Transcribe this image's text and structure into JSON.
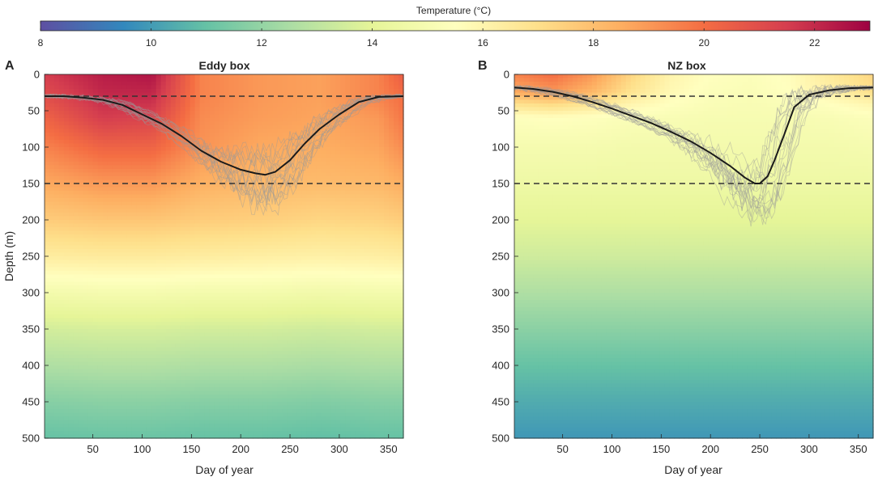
{
  "colorbar": {
    "label": "Temperature (°C)",
    "min": 8,
    "max": 23,
    "ticks": [
      8,
      10,
      12,
      14,
      16,
      18,
      20,
      22
    ],
    "colormap": [
      "#5e4fa2",
      "#3288bd",
      "#66c2a5",
      "#abdda4",
      "#e6f598",
      "#ffffbf",
      "#fee08b",
      "#fdae61",
      "#f46d43",
      "#d53e4f",
      "#9e0142"
    ]
  },
  "chart_data": [
    {
      "type": "heatmap",
      "panel_label": "A",
      "title": "Eddy box",
      "xlabel": "Day of year",
      "ylabel": "Depth (m)",
      "xlim": [
        1,
        365
      ],
      "ylim": [
        0,
        500
      ],
      "xticks": [
        50,
        100,
        150,
        200,
        250,
        300,
        350
      ],
      "yticks": [
        0,
        50,
        100,
        150,
        200,
        250,
        300,
        350,
        400,
        450,
        500
      ],
      "reference_depths": [
        30,
        150
      ],
      "temperature_profile": {
        "depths": [
          0,
          30,
          60,
          100,
          150,
          200,
          250,
          300,
          350,
          400,
          450,
          500
        ],
        "days": [
          1,
          60,
          110,
          160,
          220,
          280,
          340,
          365
        ],
        "values": [
          [
            21.5,
            22.3,
            22.5,
            19.5,
            19.0,
            18.8,
            19.5,
            20.5
          ],
          [
            21.0,
            22.0,
            22.0,
            19.5,
            19.0,
            18.8,
            19.5,
            20.0
          ],
          [
            20.3,
            21.5,
            21.3,
            19.3,
            18.9,
            18.7,
            19.0,
            19.8
          ],
          [
            19.5,
            20.3,
            20.3,
            19.1,
            18.6,
            18.5,
            18.7,
            19.3
          ],
          [
            18.6,
            19.0,
            19.0,
            18.4,
            18.2,
            18.1,
            18.2,
            18.5
          ],
          [
            17.6,
            17.8,
            17.8,
            17.6,
            17.5,
            17.3,
            17.4,
            17.6
          ],
          [
            16.4,
            16.5,
            16.5,
            16.4,
            16.3,
            16.2,
            16.3,
            16.4
          ],
          [
            14.8,
            14.9,
            14.9,
            14.8,
            14.8,
            14.7,
            14.8,
            14.8
          ],
          [
            13.5,
            13.6,
            13.6,
            13.5,
            13.5,
            13.4,
            13.5,
            13.5
          ],
          [
            12.6,
            12.7,
            12.7,
            12.6,
            12.6,
            12.5,
            12.6,
            12.6
          ],
          [
            11.7,
            11.8,
            11.8,
            11.7,
            11.7,
            11.6,
            11.7,
            11.7
          ],
          [
            11.0,
            11.1,
            11.1,
            11.0,
            11.0,
            10.9,
            11.0,
            11.0
          ]
        ]
      },
      "mean_mld": {
        "day": [
          1,
          20,
          40,
          60,
          80,
          100,
          120,
          140,
          160,
          180,
          200,
          215,
          225,
          235,
          250,
          265,
          280,
          300,
          320,
          340,
          365
        ],
        "depth": [
          30,
          30,
          32,
          35,
          42,
          55,
          68,
          85,
          105,
          120,
          131,
          136,
          138,
          134,
          118,
          95,
          75,
          55,
          38,
          31,
          30
        ]
      }
    },
    {
      "type": "heatmap",
      "panel_label": "B",
      "title": "NZ box",
      "xlabel": "Day of year",
      "ylabel": "",
      "xlim": [
        1,
        365
      ],
      "ylim": [
        0,
        500
      ],
      "xticks": [
        50,
        100,
        150,
        200,
        250,
        300,
        350
      ],
      "yticks": [
        0,
        50,
        100,
        150,
        200,
        250,
        300,
        350,
        400,
        450,
        500
      ],
      "reference_depths": [
        30,
        150
      ],
      "temperature_profile": {
        "depths": [
          0,
          25,
          40,
          60,
          100,
          150,
          200,
          250,
          300,
          350,
          400,
          450,
          500
        ],
        "days": [
          1,
          40,
          80,
          120,
          160,
          200,
          240,
          280,
          320,
          365
        ],
        "values": [
          [
            19.5,
            20.0,
            19.0,
            17.3,
            16.0,
            15.5,
            15.3,
            15.6,
            16.5,
            17.3
          ],
          [
            18.5,
            19.0,
            18.2,
            16.8,
            15.8,
            15.3,
            15.2,
            15.5,
            16.2,
            17.0
          ],
          [
            17.0,
            17.3,
            16.8,
            16.0,
            15.5,
            15.2,
            15.1,
            15.2,
            15.5,
            16.0
          ],
          [
            15.4,
            15.5,
            15.4,
            15.2,
            15.1,
            15.0,
            15.0,
            15.0,
            15.1,
            15.3
          ],
          [
            14.9,
            14.9,
            14.9,
            14.8,
            14.8,
            14.8,
            14.8,
            14.8,
            14.8,
            14.9
          ],
          [
            14.5,
            14.5,
            14.5,
            14.5,
            14.5,
            14.5,
            14.5,
            14.5,
            14.5,
            14.5
          ],
          [
            14.0,
            14.0,
            14.0,
            14.0,
            14.0,
            14.0,
            14.0,
            14.0,
            14.0,
            14.0
          ],
          [
            13.4,
            13.4,
            13.4,
            13.4,
            13.4,
            13.4,
            13.4,
            13.4,
            13.4,
            13.4
          ],
          [
            12.6,
            12.6,
            12.6,
            12.6,
            12.6,
            12.6,
            12.6,
            12.6,
            12.6,
            12.6
          ],
          [
            11.8,
            11.8,
            11.8,
            11.8,
            11.8,
            11.8,
            11.8,
            11.8,
            11.8,
            11.8
          ],
          [
            11.0,
            11.0,
            11.0,
            11.0,
            11.0,
            11.0,
            11.0,
            11.0,
            11.0,
            11.0
          ],
          [
            10.4,
            10.4,
            10.4,
            10.4,
            10.4,
            10.4,
            10.4,
            10.4,
            10.4,
            10.4
          ],
          [
            9.9,
            9.9,
            9.9,
            9.9,
            9.9,
            9.9,
            9.9,
            9.9,
            9.9,
            9.9
          ]
        ]
      },
      "mean_mld": {
        "day": [
          1,
          20,
          40,
          60,
          80,
          100,
          120,
          140,
          160,
          180,
          200,
          220,
          235,
          245,
          250,
          258,
          265,
          275,
          285,
          300,
          320,
          340,
          365
        ],
        "depth": [
          18,
          20,
          24,
          30,
          38,
          47,
          57,
          67,
          79,
          92,
          108,
          126,
          142,
          150,
          150,
          140,
          118,
          82,
          45,
          28,
          22,
          19,
          18
        ]
      }
    }
  ]
}
